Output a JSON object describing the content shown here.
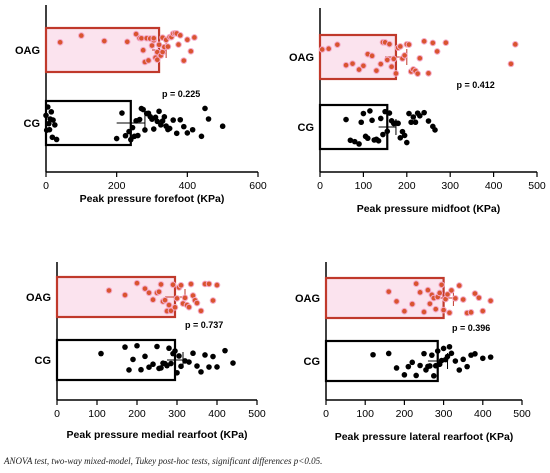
{
  "colors": {
    "oag_outline": "#c0392b",
    "oag_fill": "#fbe3ee",
    "oag_dot": "#d9542f",
    "cg_outline": "#000000",
    "cg_dot": "#000000",
    "axis": "#000000"
  },
  "caption": "ANOVA test, two-way mixed-model, Tukey post-hoc tests, significant differences p<0.05.",
  "chart_data": [
    {
      "type": "bar",
      "xlabel": "Peak pressure forefoot (KPa)",
      "categories": [
        "OAG",
        "CG"
      ],
      "xlim": [
        0,
        600
      ],
      "xticks": [
        0,
        200,
        400,
        600
      ],
      "annotation": "p = 0.225",
      "series": [
        {
          "name": "OAG",
          "mean": 320,
          "sd": 20,
          "points": [
            40,
            100,
            165,
            230,
            255,
            265,
            270,
            275,
            280,
            285,
            290,
            295,
            300,
            305,
            305,
            310,
            315,
            315,
            320,
            325,
            330,
            330,
            335,
            340,
            345,
            350,
            355,
            360,
            365,
            370,
            375,
            380,
            390,
            400,
            410,
            420
          ]
        },
        {
          "name": "CG",
          "mean": 240,
          "sd": 40,
          "points": [
            0,
            2,
            5,
            8,
            10,
            12,
            15,
            18,
            20,
            25,
            30,
            200,
            215,
            225,
            235,
            240,
            245,
            250,
            255,
            260,
            265,
            270,
            275,
            280,
            285,
            290,
            295,
            300,
            305,
            310,
            315,
            320,
            325,
            330,
            335,
            340,
            345,
            350,
            360,
            370,
            380,
            390,
            400,
            415,
            440,
            450,
            460,
            500
          ]
        }
      ]
    },
    {
      "type": "bar",
      "xlabel": "Peak pressure midfoot (KPa)",
      "categories": [
        "OAG",
        "CG"
      ],
      "xlim": [
        0,
        500
      ],
      "xticks": [
        0,
        100,
        200,
        300,
        400,
        500
      ],
      "annotation": "p = 0.412",
      "series": [
        {
          "name": "OAG",
          "mean": 175,
          "sd": 25,
          "points": [
            5,
            20,
            40,
            60,
            75,
            90,
            100,
            110,
            120,
            130,
            140,
            145,
            150,
            155,
            160,
            165,
            170,
            175,
            180,
            185,
            190,
            195,
            200,
            205,
            210,
            215,
            220,
            225,
            230,
            240,
            250,
            260,
            270,
            290,
            440,
            450
          ]
        },
        {
          "name": "CG",
          "mean": 155,
          "sd": 20,
          "points": [
            60,
            70,
            80,
            90,
            95,
            100,
            105,
            110,
            115,
            120,
            125,
            130,
            135,
            140,
            145,
            150,
            155,
            160,
            165,
            170,
            175,
            180,
            185,
            190,
            195,
            200,
            205,
            210,
            215,
            220,
            225,
            230,
            240,
            250,
            260,
            265
          ]
        }
      ]
    },
    {
      "type": "bar",
      "xlabel": "Peak pressure medial rearfoot (KPa)",
      "categories": [
        "OAG",
        "CG"
      ],
      "xlim": [
        0,
        500
      ],
      "xticks": [
        0,
        100,
        200,
        300,
        400,
        500
      ],
      "annotation": "p = 0.737",
      "series": [
        {
          "name": "OAG",
          "mean": 295,
          "sd": 25,
          "points": [
            130,
            170,
            200,
            220,
            230,
            240,
            250,
            255,
            260,
            265,
            270,
            275,
            280,
            285,
            290,
            295,
            300,
            305,
            310,
            315,
            320,
            325,
            330,
            335,
            340,
            345,
            350,
            360,
            370,
            380,
            390,
            400
          ]
        },
        {
          "name": "CG",
          "mean": 295,
          "sd": 20,
          "points": [
            110,
            170,
            180,
            190,
            200,
            210,
            220,
            230,
            240,
            250,
            255,
            260,
            265,
            270,
            275,
            280,
            285,
            290,
            295,
            300,
            305,
            310,
            320,
            330,
            340,
            350,
            360,
            370,
            380,
            390,
            400,
            420,
            440
          ]
        }
      ]
    },
    {
      "type": "bar",
      "xlabel": "Peak pressure lateral rearfoot (KPa)",
      "categories": [
        "OAG",
        "CG"
      ],
      "xlim": [
        0,
        500
      ],
      "xticks": [
        0,
        100,
        200,
        300,
        400,
        500
      ],
      "annotation": "p = 0.396",
      "series": [
        {
          "name": "OAG",
          "mean": 300,
          "sd": 25,
          "points": [
            160,
            180,
            200,
            220,
            230,
            240,
            250,
            260,
            265,
            270,
            275,
            280,
            285,
            290,
            295,
            300,
            305,
            310,
            315,
            320,
            330,
            340,
            350,
            360,
            370,
            380,
            390,
            400,
            420
          ]
        },
        {
          "name": "CG",
          "mean": 285,
          "sd": 25,
          "points": [
            120,
            160,
            180,
            200,
            210,
            220,
            230,
            240,
            250,
            255,
            260,
            265,
            270,
            275,
            280,
            285,
            290,
            295,
            300,
            305,
            310,
            315,
            320,
            330,
            340,
            350,
            360,
            370,
            380,
            400,
            420
          ]
        }
      ]
    }
  ]
}
